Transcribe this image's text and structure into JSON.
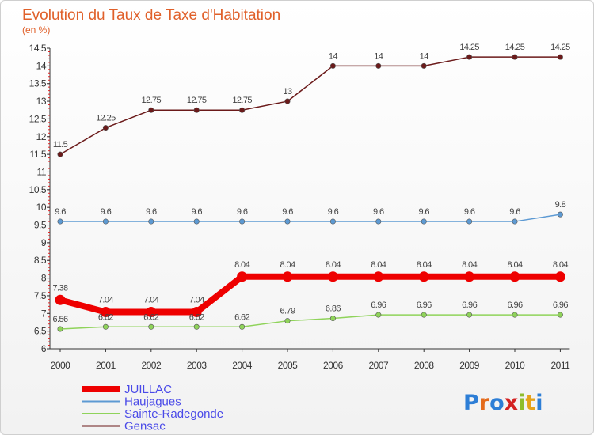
{
  "title": "Evolution du Taux de Taxe d'Habitation",
  "subtitle": "(en %)",
  "logo_text": "Proxiti",
  "chart_data": {
    "type": "line",
    "title": "Evolution du Taux de Taxe d'Habitation",
    "ylabel": "(en %)",
    "xlabel": "",
    "x": [
      "2000",
      "2001",
      "2002",
      "2003",
      "2004",
      "2005",
      "2006",
      "2007",
      "2008",
      "2009",
      "2010",
      "2011"
    ],
    "ylim": [
      6,
      14.5
    ],
    "yticks": [
      "6",
      "6.5",
      "7",
      "7.5",
      "8",
      "8.5",
      "9",
      "9.5",
      "10",
      "10.5",
      "11",
      "11.5",
      "12",
      "12.5",
      "13",
      "13.5",
      "14",
      "14.5"
    ],
    "grid": false,
    "legend_position": "bottom-left",
    "series": [
      {
        "name": "Gensac",
        "color": "#6b1a1a",
        "values": [
          11.5,
          12.25,
          12.75,
          12.75,
          12.75,
          13,
          14,
          14,
          14,
          14.25,
          14.25,
          14.25
        ],
        "labels": [
          "11.5",
          "12.25",
          "12.75",
          "12.75",
          "12.75",
          "13",
          "14",
          "14",
          "14",
          "14.25",
          "14.25",
          "14.25"
        ]
      },
      {
        "name": "Haujagues",
        "color": "#5d9ad3",
        "values": [
          9.6,
          9.6,
          9.6,
          9.6,
          9.6,
          9.6,
          9.6,
          9.6,
          9.6,
          9.6,
          9.6,
          9.8
        ],
        "labels": [
          "9.6",
          "9.6",
          "9.6",
          "9.6",
          "9.6",
          "9.6",
          "9.6",
          "9.6",
          "9.6",
          "9.6",
          "9.6",
          "9.8"
        ]
      },
      {
        "name": "Sainte-Radegonde",
        "color": "#8fd35a",
        "values": [
          6.56,
          6.62,
          6.62,
          6.62,
          6.62,
          6.79,
          6.86,
          6.96,
          6.96,
          6.96,
          6.96,
          6.96
        ],
        "labels": [
          "6.56",
          "6.62",
          "6.62",
          "6.62",
          "6.62",
          "6.79",
          "6.86",
          "6.96",
          "6.96",
          "6.96",
          "6.96",
          "6.96"
        ]
      },
      {
        "name": "JUILLAC",
        "color": "#ee0000",
        "values": [
          7.38,
          7.04,
          7.04,
          7.04,
          8.04,
          8.04,
          8.04,
          8.04,
          8.04,
          8.04,
          8.04,
          8.04
        ],
        "labels": [
          "7.38",
          "7.04",
          "7.04",
          "7.04",
          "8.04",
          "8.04",
          "8.04",
          "8.04",
          "8.04",
          "8.04",
          "8.04",
          "8.04"
        ]
      }
    ],
    "legend": [
      "JUILLAC",
      "Haujagues",
      "Sainte-Radegonde",
      "Gensac"
    ]
  }
}
